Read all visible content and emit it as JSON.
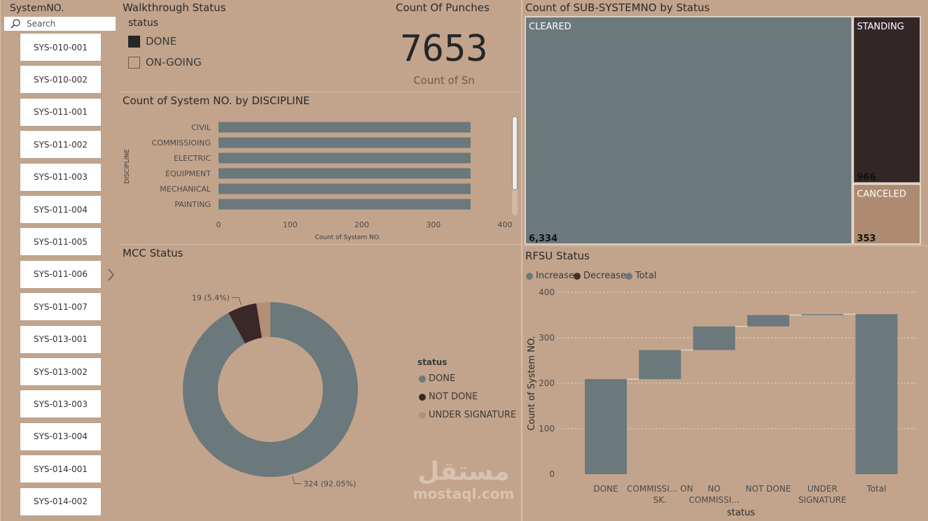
{
  "slicer": {
    "title": "SystemNO.",
    "search_placeholder": "Search",
    "items": [
      "SYS-010-001",
      "SYS-010-002",
      "SYS-011-001",
      "SYS-011-002",
      "SYS-011-003",
      "SYS-011-004",
      "SYS-011-005",
      "SYS-011-006",
      "SYS-011-007",
      "SYS-013-001",
      "SYS-013-002",
      "SYS-013-003",
      "SYS-013-004",
      "SYS-014-001",
      "SYS-014-002"
    ]
  },
  "walkthrough": {
    "title": "Walkthrough Status",
    "legend_title": "status",
    "options": [
      {
        "label": "DONE",
        "checked": true
      },
      {
        "label": "ON-GOING",
        "checked": false
      }
    ]
  },
  "punches": {
    "title": "Count Of Punches",
    "value": "7653",
    "subtitle": "Count of Sn"
  },
  "discipline_chart": {
    "title": "Count of System NO. by DISCIPLINE"
  },
  "mcc": {
    "title": "MCC Status",
    "legend_title": "status"
  },
  "treemap": {
    "title": "Count of SUB-SYSTEMNO by Status"
  },
  "rfsu": {
    "title": "RFSU Status",
    "legend": [
      {
        "label": "Increase",
        "color": "#6b787c"
      },
      {
        "label": "Decrease",
        "color": "#4a2c2c"
      },
      {
        "label": "Total",
        "color": "#6b787c"
      }
    ]
  },
  "watermark": {
    "arabic": "مستقل",
    "latin": "mostaql.com"
  },
  "chart_data": [
    {
      "type": "bar",
      "orientation": "horizontal",
      "title": "Count of System NO. by DISCIPLINE",
      "categories": [
        "CIVIL",
        "COMMISSIOING",
        "ELECTRIC",
        "EQUIPMENT",
        "MECHANICAL",
        "PAINTING"
      ],
      "values": [
        352,
        352,
        352,
        352,
        352,
        352
      ],
      "xlabel": "Count of System NO.",
      "ylabel": "DISCIPLINE",
      "xlim": [
        0,
        400
      ],
      "xticks": [
        "0",
        "100",
        "200",
        "300",
        "400"
      ],
      "color": "#6b787c"
    },
    {
      "type": "pie",
      "donut": true,
      "title": "MCC Status",
      "categories": [
        "DONE",
        "NOT DONE",
        "UNDER SIGNATURE"
      ],
      "values": [
        324,
        19,
        9
      ],
      "colors": [
        "#6b787c",
        "#3a2828",
        "#b38f75"
      ],
      "data_labels": [
        "324 (92.05%)",
        "19 (5.4%)",
        ""
      ],
      "legend_title": "status",
      "legend": [
        "DONE",
        "NOT DONE",
        "UNDER SIGNATURE"
      ]
    },
    {
      "type": "treemap",
      "title": "Count of SUB-SYSTEMNO by Status",
      "categories": [
        "CLEARED",
        "STANDING",
        "CANCELED"
      ],
      "values": [
        6334,
        966,
        353
      ],
      "value_labels": [
        "6,334",
        "966",
        "353"
      ],
      "colors": [
        "#6b787c",
        "#332627",
        "#ad8a70"
      ]
    },
    {
      "type": "bar",
      "subtype": "waterfall",
      "title": "RFSU Status",
      "categories": [
        "DONE",
        "COMMISSI... ON SK.",
        "NO COMMISSI...",
        "NOT DONE",
        "UNDER SIGNATURE",
        "Total"
      ],
      "values": [
        209,
        64,
        52,
        25,
        2,
        352
      ],
      "category_type": [
        "increase",
        "increase",
        "increase",
        "increase",
        "increase",
        "total"
      ],
      "xlabel": "status",
      "ylabel": "Count of System NO.",
      "ylim": [
        0,
        400
      ],
      "yticks": [
        "0",
        "100",
        "200",
        "300",
        "400"
      ],
      "color": "#6b787c",
      "legend": [
        "Increase",
        "Decrease",
        "Total"
      ]
    }
  ]
}
